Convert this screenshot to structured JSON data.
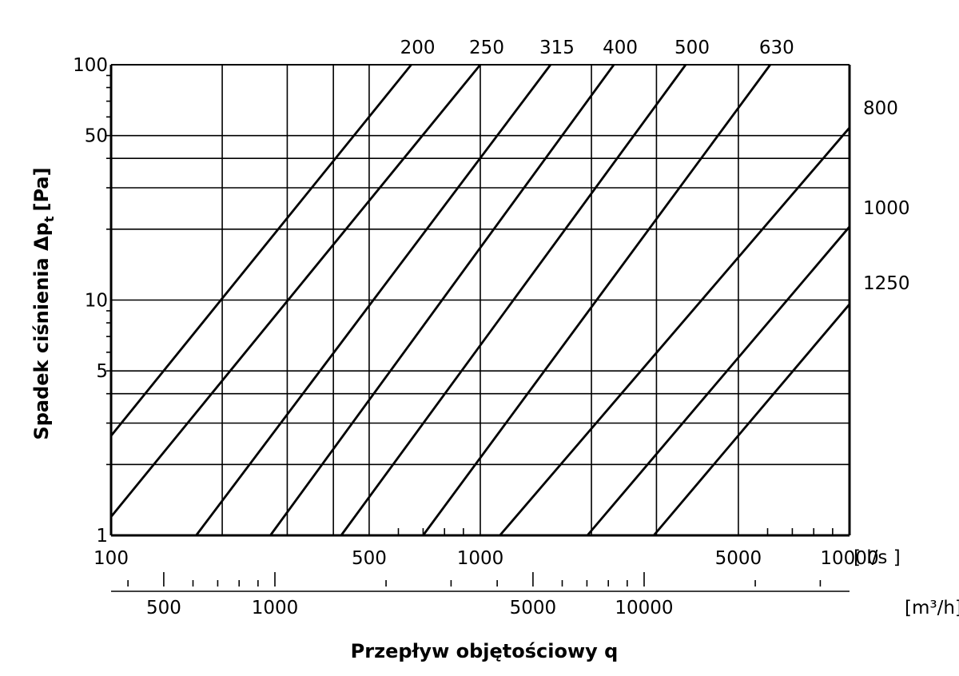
{
  "chart_data": {
    "type": "line",
    "x_scale": "log",
    "y_scale": "log",
    "xlim": [
      100,
      10000
    ],
    "ylim": [
      1,
      100
    ],
    "xlabel": "Przepływ objętościowy q",
    "ylabel": "Spadek ciśnienia Δp",
    "ylabel_sub": "t",
    "ylabel_unit": "[Pa]",
    "x_unit": "[ l/s ]",
    "x2_unit": "[m³/h]",
    "x_ticks": [
      {
        "value": 100,
        "label": "100"
      },
      {
        "value": 500,
        "label": "500"
      },
      {
        "value": 1000,
        "label": "1000"
      },
      {
        "value": 5000,
        "label": "5000"
      },
      {
        "value": 10000,
        "label": "10000"
      }
    ],
    "x2_ticks": [
      {
        "value": 500,
        "label": "500"
      },
      {
        "value": 1000,
        "label": "1000"
      },
      {
        "value": 5000,
        "label": "5000"
      },
      {
        "value": 10000,
        "label": "10000"
      }
    ],
    "y_ticks": [
      {
        "value": 1,
        "label": "1"
      },
      {
        "value": 5,
        "label": "5"
      },
      {
        "value": 10,
        "label": "10"
      },
      {
        "value": 50,
        "label": "50"
      },
      {
        "value": 100,
        "label": "100"
      }
    ],
    "x_grid": [
      200,
      300,
      400,
      500,
      1000,
      2000,
      3000,
      5000,
      10000
    ],
    "y_grid": [
      2,
      3,
      4,
      5,
      10,
      20,
      30,
      40,
      50,
      100
    ],
    "series": [
      {
        "name": "200",
        "points": [
          [
            100,
            2.65
          ],
          [
            650,
            100
          ]
        ]
      },
      {
        "name": "250",
        "points": [
          [
            100,
            1.2
          ],
          [
            1000,
            100
          ]
        ]
      },
      {
        "name": "315",
        "points": [
          [
            170,
            1
          ],
          [
            1550,
            100
          ]
        ]
      },
      {
        "name": "400",
        "points": [
          [
            270,
            1
          ],
          [
            2300,
            100
          ]
        ]
      },
      {
        "name": "500",
        "points": [
          [
            420,
            1
          ],
          [
            3600,
            100
          ]
        ]
      },
      {
        "name": "630",
        "points": [
          [
            700,
            1
          ],
          [
            6100,
            100
          ]
        ]
      },
      {
        "name": "800",
        "points": [
          [
            1130,
            1
          ],
          [
            10000,
            54
          ]
        ]
      },
      {
        "name": "1000",
        "points": [
          [
            1950,
            1
          ],
          [
            10000,
            20.5
          ]
        ]
      },
      {
        "name": "1250",
        "points": [
          [
            2950,
            1
          ],
          [
            10000,
            9.6
          ]
        ]
      }
    ],
    "series_label_pos": [
      "top",
      "top",
      "top",
      "top",
      "top",
      "top",
      "right",
      "right",
      "right"
    ]
  }
}
